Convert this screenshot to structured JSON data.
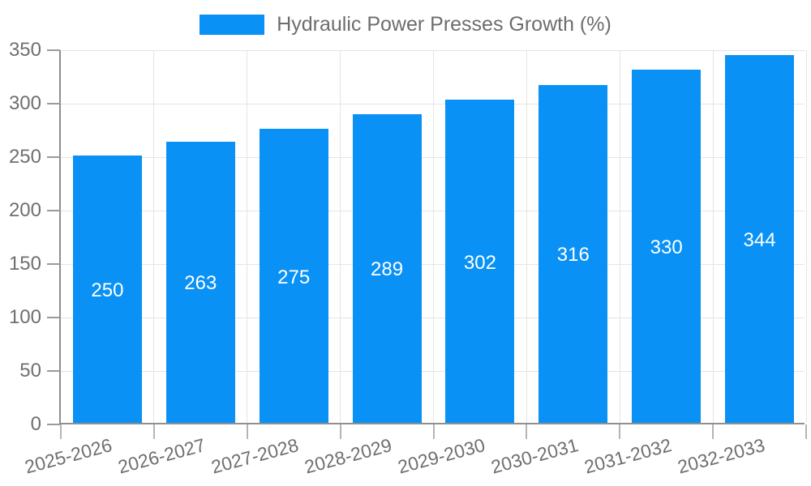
{
  "chart_data": {
    "type": "bar",
    "title": "Hydraulic Power Presses Growth (%)",
    "categories": [
      "2025-2026",
      "2026-2027",
      "2027-2028",
      "2028-2029",
      "2029-2030",
      "2030-2031",
      "2031-2032",
      "2032-2033"
    ],
    "values": [
      250,
      263,
      275,
      289,
      302,
      316,
      330,
      344
    ],
    "value_labels": [
      "250",
      "263",
      "275",
      "289",
      "302",
      "316",
      "330",
      "344"
    ],
    "xlabel": "",
    "ylabel": "",
    "ylim": [
      0,
      350
    ],
    "yticks": [
      0,
      50,
      100,
      150,
      200,
      250,
      300,
      350
    ],
    "grid": true,
    "legend_position": "top",
    "bar_width_fraction": 0.74,
    "x_label_rotation_deg": -15,
    "colors": {
      "background": "#ffffff",
      "bar": "#0991f5",
      "value_text": "#ffffff",
      "axis_line": "#8f8f8f",
      "gridline": "#e4e4e4",
      "tick_mark": "#9a9a9a",
      "x_tick_mark": "#b5b5b5",
      "tick_text": "#6f6f6f",
      "legend_text": "#6d6d6d"
    }
  }
}
